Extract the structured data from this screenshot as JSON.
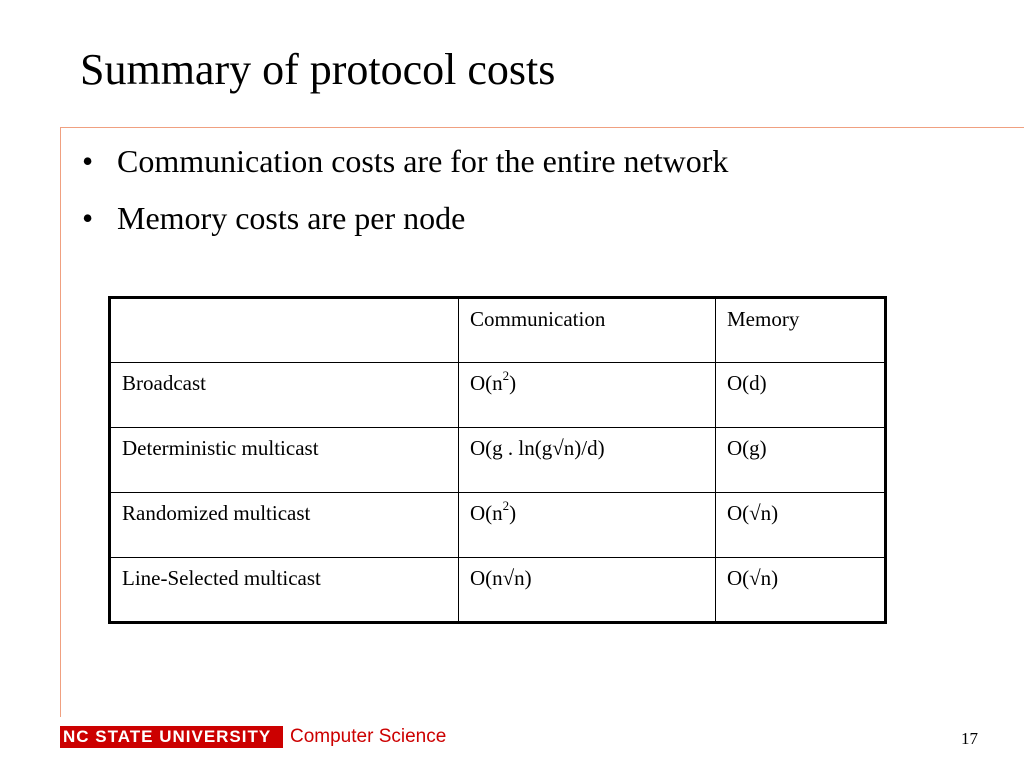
{
  "slide": {
    "title": "Summary of protocol costs",
    "bullets": [
      "Communication costs are for the entire network",
      "Memory costs are per node"
    ],
    "bullet_glyph": "•"
  },
  "table": {
    "headers": [
      "",
      "Communication",
      "Memory"
    ],
    "rows": [
      {
        "name": "Broadcast",
        "communication": "O(n",
        "communication_sup": "2",
        "communication_tail": ")",
        "memory": "O(d)"
      },
      {
        "name": "Deterministic multicast",
        "communication": "O(g . ln(g√n)/d)",
        "memory": "O(g)"
      },
      {
        "name": "Randomized multicast",
        "communication": "O(n",
        "communication_sup": "2",
        "communication_tail": ")",
        "memory": "O(√n)"
      },
      {
        "name": "Line-Selected multicast",
        "communication": "O(n√n)",
        "memory": "O(√n)"
      }
    ]
  },
  "footer": {
    "logo_text": "NC STATE UNIVERSITY",
    "department": "Computer Science",
    "page_number": "17"
  },
  "colors": {
    "accent_red": "#cc0000",
    "rule": "#f0a080"
  }
}
